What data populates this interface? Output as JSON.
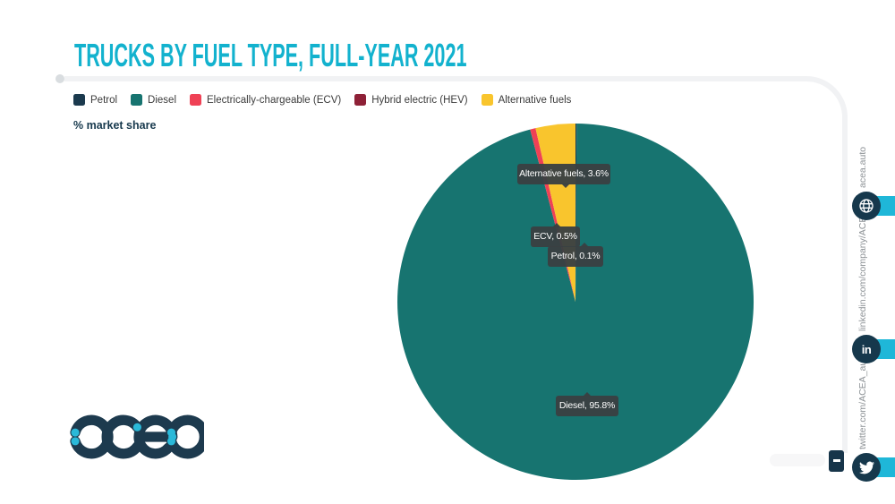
{
  "header": {
    "title": "TRUCKS BY FUEL TYPE, FULL-YEAR 2021"
  },
  "axis_label": "% market share",
  "legend": {
    "items": [
      {
        "label": "Petrol",
        "color": "#1b3a4e"
      },
      {
        "label": "Diesel",
        "color": "#177470"
      },
      {
        "label": "Electrically-chargeable (ECV)",
        "color": "#ef4155"
      },
      {
        "label": "Hybrid electric (HEV)",
        "color": "#8e2137"
      },
      {
        "label": "Alternative fuels",
        "color": "#f9c52d"
      }
    ]
  },
  "chart_data": {
    "type": "pie",
    "title": "TRUCKS BY FUEL TYPE, FULL-YEAR 2021",
    "unit_label": "% market share",
    "start_angle_deg": 0,
    "direction": "clockwise",
    "legend_position": "top",
    "slices": [
      {
        "label": "Petrol",
        "value": 0.1,
        "color": "#1b3a4e"
      },
      {
        "label": "Diesel",
        "value": 95.8,
        "color": "#177470"
      },
      {
        "label": "Electrically-chargeable (ECV)",
        "value": 0.5,
        "color": "#ef4155"
      },
      {
        "label": "Hybrid electric (HEV)",
        "value": 0.0,
        "color": "#8e2137"
      },
      {
        "label": "Alternative fuels",
        "value": 3.6,
        "color": "#f9c52d"
      }
    ],
    "tooltips": [
      {
        "text": "Alternative fuels, 3.6%"
      },
      {
        "text": "ECV, 0.5%"
      },
      {
        "text": "Petrol, 0.1%"
      },
      {
        "text": "Diesel, 95.8%"
      }
    ]
  },
  "sidebar": {
    "links": [
      {
        "label": "acea.auto",
        "icon": "globe-icon"
      },
      {
        "label": "linkedin.com/company/ACEA/",
        "icon": "linkedin-icon"
      },
      {
        "label": "twitter.com/ACEA_auto",
        "icon": "twitter-icon"
      }
    ]
  },
  "logo": {
    "text": "acea"
  },
  "colors": {
    "title": "#13b2ce",
    "accent_band": "#1fb7d8",
    "icon_circle": "#16384c",
    "tooltip_bg": "#3a4143",
    "frame_line": "#f1f2f4"
  }
}
